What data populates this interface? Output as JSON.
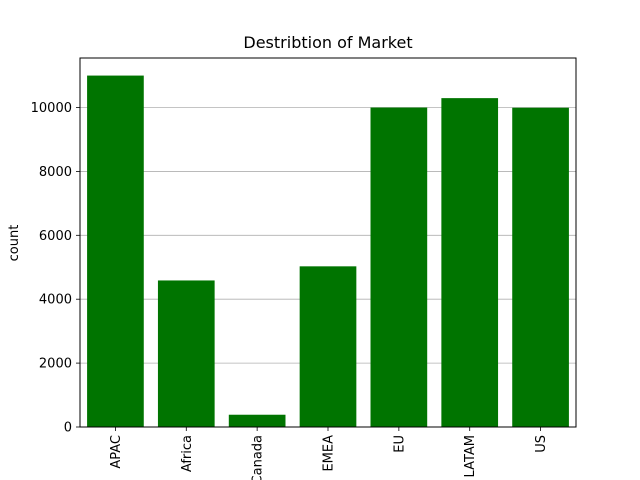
{
  "chart_data": {
    "type": "bar",
    "title": "Destribtion of Market",
    "xlabel": "",
    "ylabel": "count",
    "categories": [
      "APAC",
      "Africa",
      "Canada",
      "EMEA",
      "EU",
      "LATAM",
      "US"
    ],
    "values": [
      11000,
      4587,
      384,
      5029,
      10000,
      10294,
      9994
    ],
    "ylim": [
      0,
      11550
    ],
    "yticks": [
      0,
      2000,
      4000,
      6000,
      8000,
      10000
    ],
    "grid": "y",
    "bar_color": "#007400",
    "legend": "none"
  }
}
